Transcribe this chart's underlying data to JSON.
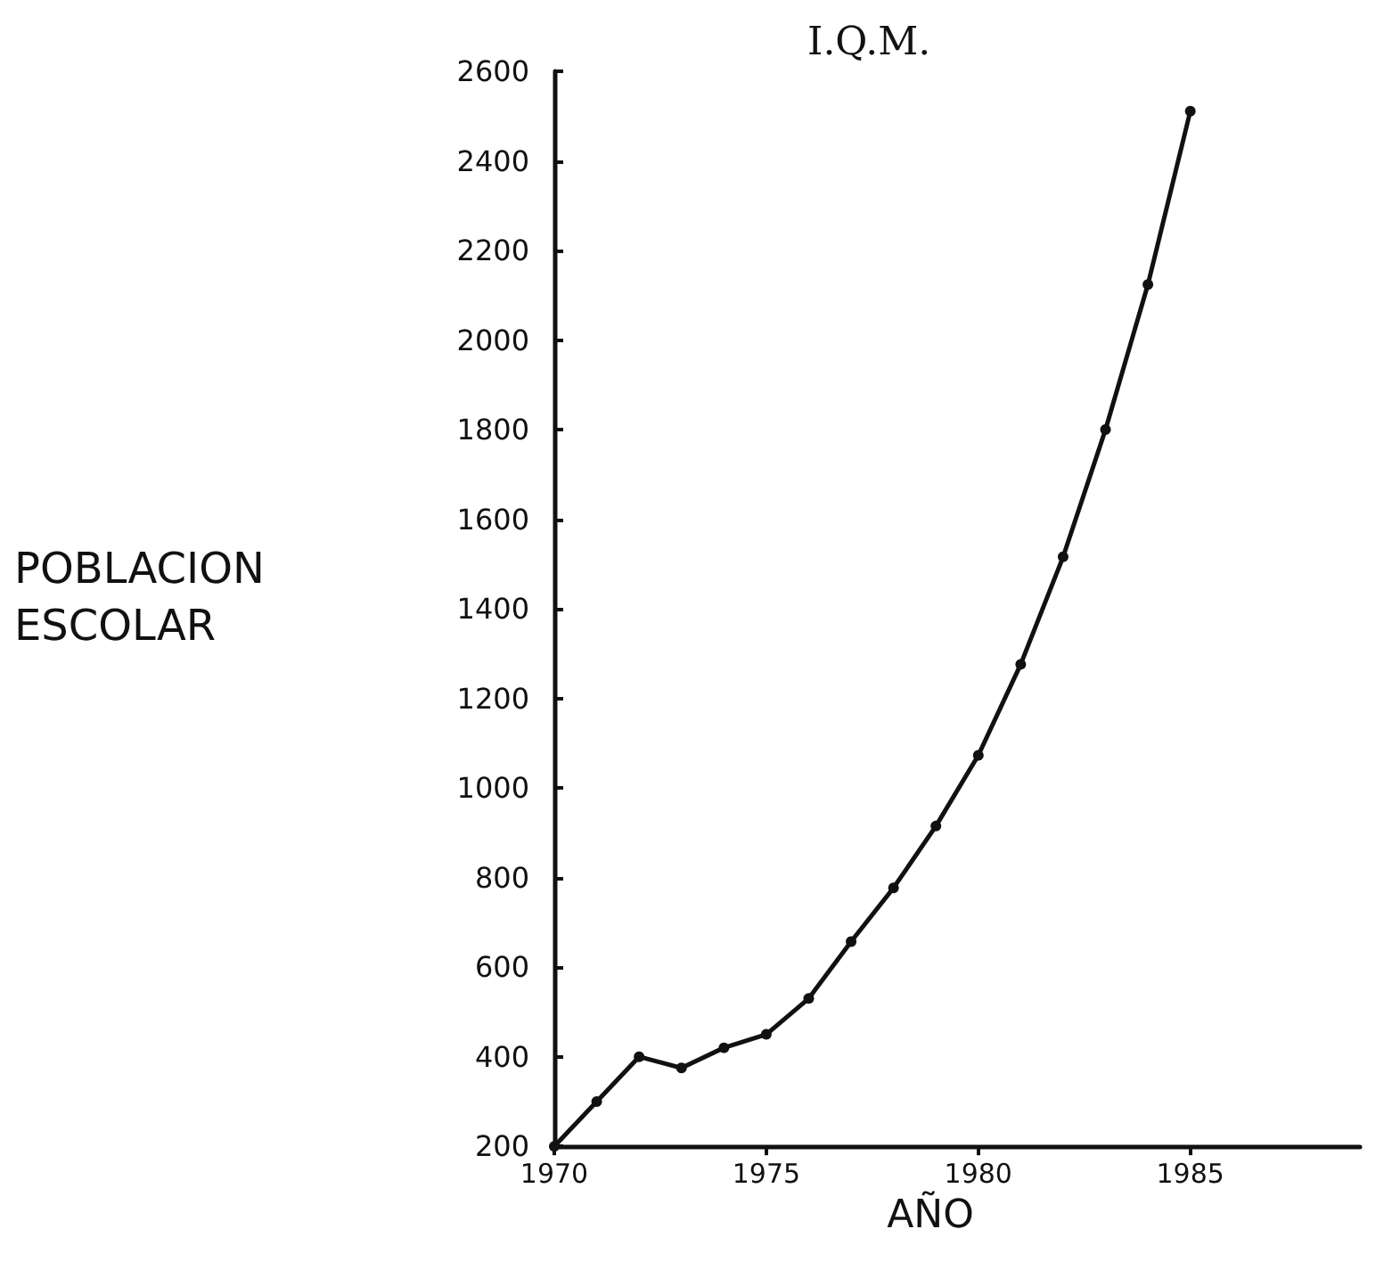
{
  "chart_data": {
    "type": "line",
    "title": "I.Q.M.",
    "xlabel": "AÑO",
    "ylabel": "POBLACION ESCOLAR",
    "x": [
      1970,
      1971,
      1972,
      1973,
      1974,
      1975,
      1976,
      1977,
      1978,
      1979,
      1980,
      1981,
      1982,
      1983,
      1984,
      1985
    ],
    "series": [
      {
        "color": "#111111",
        "values": [
          200,
          300,
          400,
          375,
          420,
          450,
          530,
          657,
          777,
          915,
          1073,
          1276,
          1516,
          1800,
          2124,
          2511
        ]
      }
    ],
    "xlim": [
      1970,
      1989
    ],
    "xticks": [
      1970,
      1975,
      1980,
      1985
    ],
    "ylim": [
      200,
      2600
    ],
    "yticks": [
      200,
      400,
      600,
      800,
      1000,
      1200,
      1400,
      1600,
      1800,
      2000,
      2200,
      2400,
      2600
    ],
    "marker": "circle",
    "line_style": "solid"
  }
}
